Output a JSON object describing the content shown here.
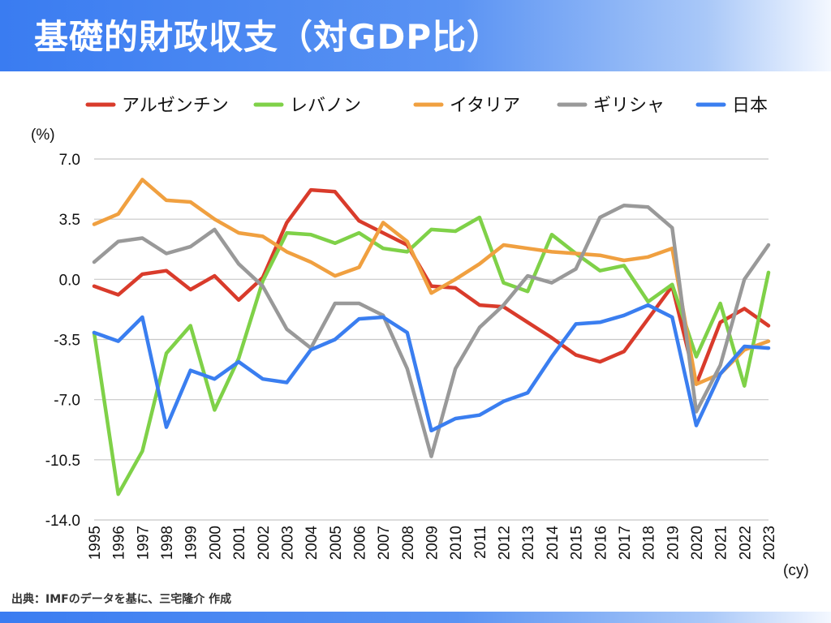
{
  "header": {
    "title": "基礎的財政収支（対GDP比）"
  },
  "footer": {
    "source": "出典：IMFのデータを基に、三宅隆介 作成"
  },
  "chart_data": {
    "type": "line",
    "y_unit_label": "(%)",
    "x_unit_label": "(cy)",
    "ylim": [
      -14.0,
      7.0
    ],
    "yticks": [
      "7.0",
      "3.5",
      "0.0",
      "-3.5",
      "-7.0",
      "-10.5",
      "-14.0"
    ],
    "ytick_values": [
      7.0,
      3.5,
      0.0,
      -3.5,
      -7.0,
      -10.5,
      -14.0
    ],
    "grid": true,
    "legend_position": "top",
    "x": [
      "1995",
      "1996",
      "1997",
      "1998",
      "1999",
      "2000",
      "2001",
      "2002",
      "2003",
      "2004",
      "2005",
      "2006",
      "2007",
      "2008",
      "2009",
      "2010",
      "2011",
      "2012",
      "2013",
      "2014",
      "2015",
      "2016",
      "2017",
      "2018",
      "2019",
      "2020",
      "2021",
      "2022",
      "2023"
    ],
    "series": [
      {
        "name": "アルゼンチン",
        "color": "#d93b2b",
        "values": [
          -0.4,
          -0.9,
          0.3,
          0.5,
          -0.6,
          0.2,
          -1.2,
          0.1,
          3.3,
          5.2,
          5.1,
          3.4,
          2.7,
          2.0,
          -0.4,
          -0.5,
          -1.5,
          -1.6,
          -2.5,
          -3.4,
          -4.4,
          -4.8,
          -4.2,
          -2.3,
          -0.4,
          -6.1,
          -2.5,
          -1.7,
          -2.7
        ]
      },
      {
        "name": "レバノン",
        "color": "#7fd148",
        "values": [
          -3.1,
          -12.5,
          -10.0,
          -4.3,
          -2.7,
          -7.6,
          -4.6,
          -0.1,
          2.7,
          2.6,
          2.1,
          2.7,
          1.8,
          1.6,
          2.9,
          2.8,
          3.6,
          -0.2,
          -0.7,
          2.6,
          1.5,
          0.5,
          0.8,
          -1.3,
          -0.3,
          -4.5,
          -1.4,
          -6.2,
          0.4
        ]
      },
      {
        "name": "イタリア",
        "color": "#f0a040",
        "values": [
          3.2,
          3.8,
          5.8,
          4.6,
          4.5,
          3.5,
          2.7,
          2.5,
          1.6,
          1.0,
          0.2,
          0.7,
          3.3,
          2.2,
          -0.8,
          0.0,
          0.9,
          2.0,
          1.8,
          1.6,
          1.5,
          1.4,
          1.1,
          1.3,
          1.8,
          -6.1,
          -5.5,
          -4.1,
          -3.6
        ]
      },
      {
        "name": "ギリシャ",
        "color": "#999999",
        "values": [
          1.0,
          2.2,
          2.4,
          1.5,
          1.9,
          2.9,
          0.9,
          -0.4,
          -2.9,
          -4.0,
          -1.4,
          -1.4,
          -2.1,
          -5.2,
          -10.3,
          -5.2,
          -2.8,
          -1.5,
          0.2,
          -0.2,
          0.6,
          3.6,
          4.3,
          4.2,
          3.0,
          -7.7,
          -5.0,
          0.0,
          2.0
        ]
      },
      {
        "name": "日本",
        "color": "#3a7ef0",
        "values": [
          -3.1,
          -3.6,
          -2.2,
          -8.6,
          -5.3,
          -5.8,
          -4.8,
          -5.8,
          -6.0,
          -4.1,
          -3.5,
          -2.3,
          -2.2,
          -3.1,
          -8.8,
          -8.1,
          -7.9,
          -7.1,
          -6.6,
          -4.5,
          -2.6,
          -2.5,
          -2.1,
          -1.5,
          -2.2,
          -8.5,
          -5.5,
          -3.9,
          -4.0
        ]
      }
    ]
  }
}
